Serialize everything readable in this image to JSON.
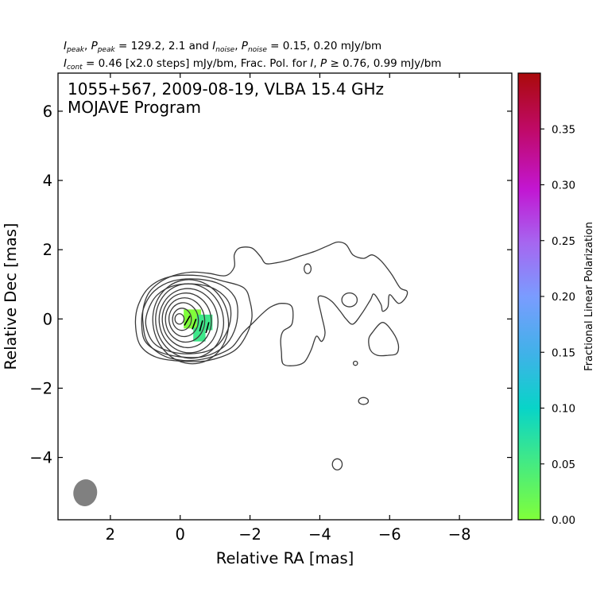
{
  "chart_data": {
    "type": "contour",
    "header_line1": "I_peak, P_peak = 129.2, 2.1 and I_noise, P_noise = 0.15, 0.20 mJy/bm",
    "header_line1_parts": {
      "a": "I",
      "a_sub": "peak",
      "b": ", ",
      "c": "P",
      "c_sub": "peak",
      "d": " = 129.2, 2.1 and ",
      "e": "I",
      "e_sub": "noise",
      "f": ", ",
      "g": "P",
      "g_sub": "noise",
      "h": " = 0.15, 0.20 mJy/bm"
    },
    "header_line2_parts": {
      "a": "I",
      "a_sub": "cont",
      "b": " = 0.46 [x2.0 steps] mJy/bm, Frac. Pol. for ",
      "c": "I",
      "d": ", ",
      "e": "P",
      "f": " ≥ 0.76, 0.99 mJy/bm"
    },
    "title_line1": "1055+567, 2009-08-19, VLBA 15.4 GHz",
    "title_line2": "MOJAVE Program",
    "xlabel": "Relative RA [mas]",
    "ylabel": "Relative Dec [mas]",
    "xlim": [
      3.5,
      -9.5
    ],
    "ylim": [
      -5.8,
      7.1
    ],
    "xticks": [
      2,
      0,
      -2,
      -4,
      -6,
      -8
    ],
    "xtick_labels": [
      "2",
      "0",
      "−2",
      "−4",
      "−6",
      "−8"
    ],
    "yticks": [
      -4,
      -2,
      0,
      2,
      4,
      6
    ],
    "ytick_labels": [
      "−4",
      "−2",
      "0",
      "2",
      "4",
      "6"
    ],
    "colorbar": {
      "label": "Fractional Linear Polarization",
      "range": [
        0,
        0.4
      ],
      "ticks": [
        0.0,
        0.05,
        0.1,
        0.15,
        0.2,
        0.25,
        0.3,
        0.35
      ],
      "tick_labels": [
        "0.00",
        "0.05",
        "0.10",
        "0.15",
        "0.20",
        "0.25",
        "0.30",
        "0.35"
      ]
    },
    "core_contours": [
      {
        "cx": -0.3,
        "cy": -0.08,
        "rx": 1.08,
        "ry": 1.22,
        "rot": -12
      },
      {
        "cx": -0.27,
        "cy": -0.06,
        "rx": 0.97,
        "ry": 1.08,
        "rot": -12
      },
      {
        "cx": -0.24,
        "cy": -0.05,
        "rx": 0.84,
        "ry": 0.93,
        "rot": -10
      },
      {
        "cx": -0.19,
        "cy": -0.04,
        "rx": 0.7,
        "ry": 0.79,
        "rot": -10
      },
      {
        "cx": -0.14,
        "cy": -0.03,
        "rx": 0.56,
        "ry": 0.64,
        "rot": -8
      },
      {
        "cx": -0.1,
        "cy": -0.02,
        "rx": 0.42,
        "ry": 0.49,
        "rot": -8
      },
      {
        "cx": -0.05,
        "cy": -0.01,
        "rx": 0.27,
        "ry": 0.32,
        "rot": 0
      },
      {
        "cx": 0.02,
        "cy": 0.0,
        "rx": 0.13,
        "ry": 0.15,
        "rot": 0
      }
    ],
    "outer_contours": [
      [
        [
          1.1,
          -0.2
        ],
        [
          1.05,
          0.3
        ],
        [
          0.75,
          0.8
        ],
        [
          0.2,
          1.1
        ],
        [
          -0.5,
          1.15
        ],
        [
          -1.15,
          1.0
        ],
        [
          -1.55,
          0.65
        ],
        [
          -1.65,
          0.2
        ],
        [
          -1.55,
          -0.35
        ],
        [
          -1.25,
          -0.8
        ],
        [
          -0.7,
          -1.08
        ],
        [
          -0.05,
          -1.1
        ],
        [
          0.6,
          -0.95
        ],
        [
          1.0,
          -0.65
        ]
      ],
      [
        [
          0.98,
          -0.2
        ],
        [
          0.92,
          0.25
        ],
        [
          0.65,
          0.7
        ],
        [
          0.15,
          0.97
        ],
        [
          -0.5,
          1.0
        ],
        [
          -1.02,
          0.85
        ],
        [
          -1.38,
          0.5
        ],
        [
          -1.45,
          0.05
        ],
        [
          -1.3,
          -0.45
        ],
        [
          -0.95,
          -0.85
        ],
        [
          -0.4,
          -1.0
        ],
        [
          0.25,
          -0.95
        ],
        [
          0.75,
          -0.7
        ]
      ],
      [
        [
          1.28,
          -0.15
        ],
        [
          1.2,
          0.4
        ],
        [
          0.88,
          0.92
        ],
        [
          0.3,
          1.22
        ],
        [
          -0.55,
          1.25
        ],
        [
          -1.2,
          1.1
        ],
        [
          -1.82,
          0.9
        ],
        [
          -2.0,
          0.5
        ],
        [
          -2.05,
          0.0
        ],
        [
          -1.85,
          -0.55
        ],
        [
          -1.5,
          -0.95
        ],
        [
          -0.8,
          -1.2
        ],
        [
          -0.05,
          -1.22
        ],
        [
          0.7,
          -1.1
        ],
        [
          1.15,
          -0.75
        ]
      ]
    ],
    "jet_contour": [
      [
        1.07,
        -0.05
      ],
      [
        1.05,
        0.35
      ],
      [
        0.9,
        0.75
      ],
      [
        0.6,
        1.05
      ],
      [
        0.2,
        1.25
      ],
      [
        -0.3,
        1.35
      ],
      [
        -0.8,
        1.32
      ],
      [
        -1.3,
        1.25
      ],
      [
        -1.55,
        1.5
      ],
      [
        -1.55,
        1.85
      ],
      [
        -1.7,
        2.05
      ],
      [
        -2.05,
        2.05
      ],
      [
        -2.3,
        1.8
      ],
      [
        -2.45,
        1.6
      ],
      [
        -2.75,
        1.62
      ],
      [
        -3.1,
        1.7
      ],
      [
        -3.45,
        1.82
      ],
      [
        -3.85,
        1.95
      ],
      [
        -4.2,
        2.1
      ],
      [
        -4.5,
        2.22
      ],
      [
        -4.75,
        2.15
      ],
      [
        -4.95,
        1.85
      ],
      [
        -5.25,
        1.75
      ],
      [
        -5.5,
        1.85
      ],
      [
        -5.75,
        1.68
      ],
      [
        -6.05,
        1.3
      ],
      [
        -6.3,
        0.9
      ],
      [
        -6.5,
        0.8
      ],
      [
        -6.45,
        0.6
      ],
      [
        -6.25,
        0.45
      ],
      [
        -6.0,
        0.7
      ],
      [
        -5.95,
        0.35
      ],
      [
        -5.8,
        0.22
      ],
      [
        -5.75,
        0.42
      ],
      [
        -5.55,
        0.72
      ],
      [
        -5.45,
        0.55
      ],
      [
        -5.2,
        0.15
      ],
      [
        -4.95,
        -0.15
      ],
      [
        -4.75,
        0.0
      ],
      [
        -4.6,
        0.2
      ],
      [
        -4.35,
        0.5
      ],
      [
        -4.1,
        0.65
      ],
      [
        -3.95,
        0.6
      ],
      [
        -4.05,
        0.1
      ],
      [
        -4.15,
        -0.4
      ],
      [
        -4.05,
        -0.65
      ],
      [
        -3.9,
        -0.5
      ],
      [
        -3.75,
        -0.9
      ],
      [
        -3.55,
        -1.25
      ],
      [
        -3.25,
        -1.35
      ],
      [
        -2.95,
        -1.3
      ],
      [
        -2.9,
        -0.95
      ],
      [
        -2.88,
        -0.6
      ],
      [
        -2.95,
        -0.35
      ],
      [
        -3.2,
        -0.15
      ],
      [
        -3.2,
        0.35
      ],
      [
        -2.9,
        0.45
      ],
      [
        -2.6,
        0.35
      ],
      [
        -2.35,
        0.15
      ],
      [
        -2.1,
        -0.1
      ],
      [
        -1.8,
        -0.4
      ],
      [
        -1.5,
        -0.8
      ],
      [
        -1.15,
        -1.0
      ],
      [
        -0.7,
        -1.15
      ],
      [
        -0.1,
        -1.2
      ],
      [
        0.5,
        -1.05
      ],
      [
        0.95,
        -0.65
      ]
    ],
    "small_contours": [
      {
        "cx": -3.65,
        "cy": 1.45,
        "rx": 0.1,
        "ry": 0.14
      },
      {
        "cx": -4.85,
        "cy": 0.55,
        "rx": 0.22,
        "ry": 0.2
      },
      {
        "cx": -5.25,
        "cy": -2.37,
        "rx": 0.14,
        "ry": 0.1
      },
      {
        "cx": -4.5,
        "cy": -4.2,
        "rx": 0.14,
        "ry": 0.16
      },
      {
        "cx": -5.02,
        "cy": -1.28,
        "rx": 0.06,
        "ry": 0.06
      }
    ],
    "knot_contour": [
      [
        -5.8,
        -0.1
      ],
      [
        -6.1,
        -0.4
      ],
      [
        -6.25,
        -0.75
      ],
      [
        -6.2,
        -1.0
      ],
      [
        -5.95,
        -1.05
      ],
      [
        -5.65,
        -1.05
      ],
      [
        -5.45,
        -0.9
      ],
      [
        -5.4,
        -0.6
      ],
      [
        -5.5,
        -0.4
      ]
    ],
    "beam": {
      "cx": 2.72,
      "cy": -5.02,
      "major": 0.78,
      "minor": 0.68,
      "pa_deg": 10,
      "color": "#808080"
    },
    "polarization_pixels": [
      {
        "x": -0.35,
        "y": 0.0,
        "w": 0.5,
        "h": 0.55,
        "frac": 0.05
      },
      {
        "x": -0.7,
        "y": -0.1,
        "w": 0.45,
        "h": 0.45,
        "frac": 0.085
      },
      {
        "x": -0.55,
        "y": -0.45,
        "w": 0.35,
        "h": 0.4,
        "frac": 0.07
      }
    ],
    "evpa_ticks": [
      {
        "x": -0.2,
        "y": -0.05,
        "angle": 30
      },
      {
        "x": -0.4,
        "y": -0.15,
        "angle": 20
      },
      {
        "x": -0.6,
        "y": -0.2,
        "angle": 15
      },
      {
        "x": -0.78,
        "y": -0.25,
        "angle": 15
      }
    ],
    "colors": {
      "contour": "#3a3a3a",
      "axis": "#000000"
    }
  }
}
